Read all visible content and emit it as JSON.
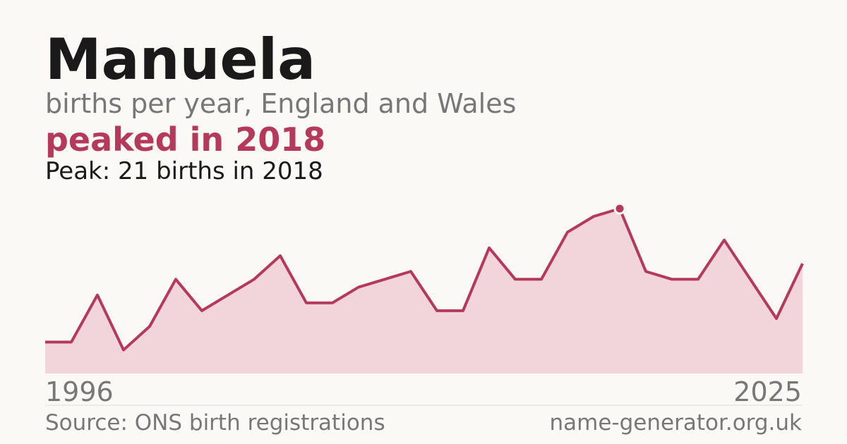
{
  "chart_data": {
    "type": "area",
    "title": "Manuela",
    "subtitle": "births per year, England and Wales",
    "annotation": "peaked in 2018",
    "note": "Peak: 21 births in 2018",
    "source": "Source: ONS birth registrations",
    "website": "name-generator.org.uk",
    "x": [
      1996,
      1997,
      1998,
      1999,
      2000,
      2001,
      2002,
      2003,
      2004,
      2005,
      2006,
      2007,
      2008,
      2009,
      2010,
      2011,
      2012,
      2013,
      2014,
      2015,
      2016,
      2017,
      2018,
      2019,
      2020,
      2021,
      2022,
      2023,
      2024,
      2025
    ],
    "values": [
      4,
      4,
      10,
      3,
      6,
      12,
      8,
      10,
      12,
      15,
      9,
      9,
      11,
      12,
      13,
      8,
      8,
      16,
      12,
      12,
      18,
      20,
      21,
      13,
      12,
      12,
      17,
      12,
      7,
      14
    ],
    "xlim": [
      1996,
      2025
    ],
    "ylim": [
      0,
      21
    ],
    "color": "#b5395a",
    "fill": "#f2d5db"
  }
}
